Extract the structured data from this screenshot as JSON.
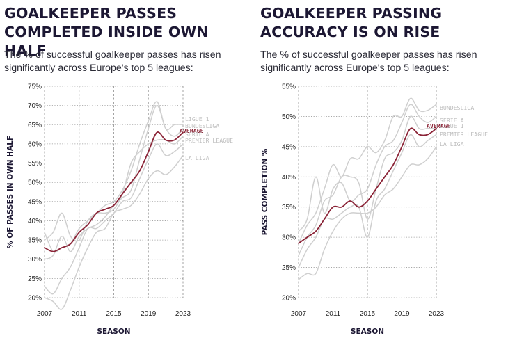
{
  "colors": {
    "average": "#8b2437",
    "league": "#cfcfcf",
    "grid": "#9a9a9a",
    "title": "#1c1733"
  },
  "chart_data": [
    {
      "type": "line",
      "title": "GOALKEEPER PASSES COMPLETED INSIDE OWN HALF",
      "subtitle": "The % of successful goalkeeper passes has risen significantly across Europe's top 5 leagues:",
      "xlabel": "SEASON",
      "ylabel": "% OF PASSES IN OWN HALF",
      "xlim": [
        2007,
        2023
      ],
      "ylim": [
        20,
        75
      ],
      "x_ticks": [
        2007,
        2011,
        2015,
        2019,
        2023
      ],
      "y_ticks": [
        20,
        25,
        30,
        35,
        40,
        45,
        50,
        55,
        60,
        65,
        70,
        75
      ],
      "y_tick_labels": [
        "20%",
        "25%",
        "30%",
        "35%",
        "40%",
        "45%",
        "50%",
        "55%",
        "60%",
        "65%",
        "70%",
        "75%"
      ],
      "x_tick_labels": [
        "2007",
        "2011",
        "2015",
        "2019",
        "2023"
      ],
      "x": [
        2007,
        2008,
        2009,
        2010,
        2011,
        2012,
        2013,
        2014,
        2015,
        2016,
        2017,
        2018,
        2019,
        2020,
        2021,
        2022,
        2023
      ],
      "series": [
        {
          "name": "AVERAGE",
          "highlight": true,
          "values": [
            33,
            32,
            33,
            34,
            37,
            39,
            42,
            43,
            44,
            47,
            50,
            53,
            58,
            63,
            61,
            61,
            63
          ]
        },
        {
          "name": "LIGUE 1",
          "values": [
            37,
            32,
            33,
            34,
            38,
            40,
            42,
            44,
            45,
            48,
            53,
            60,
            66,
            71,
            64,
            65,
            65
          ]
        },
        {
          "name": "BUNDESLIGA",
          "values": [
            30,
            31,
            36,
            32,
            36,
            38,
            39,
            41,
            44,
            46,
            48,
            56,
            64,
            70,
            64,
            62,
            64
          ]
        },
        {
          "name": "SERIE A",
          "values": [
            35,
            37,
            42,
            36,
            35,
            40,
            42,
            42,
            43,
            47,
            55,
            58,
            60,
            61,
            61,
            60,
            62
          ]
        },
        {
          "name": "PREMIER LEAGUE",
          "values": [
            23,
            21,
            25,
            28,
            33,
            38,
            38,
            40,
            42,
            45,
            46,
            51,
            56,
            60,
            57,
            58,
            60
          ]
        },
        {
          "name": "LA LIGA",
          "values": [
            20,
            19,
            17,
            22,
            28,
            33,
            37,
            38,
            42,
            43,
            44,
            47,
            51,
            53,
            52,
            54,
            57
          ]
        }
      ]
    },
    {
      "type": "line",
      "title": "GOALKEEPER PASSING ACCURACY IS ON RISE",
      "subtitle": "The % of successful goalkeeper passes has risen significantly across Europe's top 5 leagues:",
      "xlabel": "SEASON",
      "ylabel": "PASS COMPLETION %",
      "xlim": [
        2007,
        2023
      ],
      "ylim": [
        20,
        55
      ],
      "x_ticks": [
        2007,
        2011,
        2015,
        2019,
        2023
      ],
      "y_ticks": [
        20,
        25,
        30,
        35,
        40,
        45,
        50,
        55
      ],
      "y_tick_labels": [
        "20%",
        "25%",
        "30%",
        "35%",
        "40%",
        "45%",
        "50%",
        "55%"
      ],
      "x_tick_labels": [
        "2007",
        "2011",
        "2015",
        "2019",
        "2023"
      ],
      "x": [
        2007,
        2008,
        2009,
        2010,
        2011,
        2012,
        2013,
        2014,
        2015,
        2016,
        2017,
        2018,
        2019,
        2020,
        2021,
        2022,
        2023
      ],
      "series": [
        {
          "name": "AVERAGE",
          "highlight": true,
          "values": [
            29,
            30,
            31,
            33,
            35,
            35,
            36,
            35,
            36,
            38,
            40,
            42,
            45,
            48,
            47,
            47,
            48
          ]
        },
        {
          "name": "BUNDESLIGA",
          "values": [
            29,
            32,
            34,
            38,
            42,
            40,
            43,
            43,
            45,
            44,
            46,
            50,
            50,
            53,
            51,
            51,
            52
          ]
        },
        {
          "name": "SERIE A",
          "values": [
            31,
            33,
            40,
            34,
            38,
            39,
            36,
            37,
            38,
            42,
            45,
            46,
            49,
            52,
            50,
            49,
            50
          ]
        },
        {
          "name": "LIGUE 1",
          "values": [
            27,
            30,
            32,
            36,
            37,
            40,
            40,
            39,
            33,
            38,
            43,
            44,
            46,
            50,
            48,
            48,
            48
          ]
        },
        {
          "name": "PREMIER LEAGUE",
          "values": [
            25,
            28,
            30,
            33,
            33,
            34,
            35,
            35,
            30,
            36,
            38,
            41,
            44,
            47,
            45,
            46,
            47
          ]
        },
        {
          "name": "LA LIGA",
          "values": [
            23,
            24,
            24,
            28,
            31,
            33,
            34,
            34,
            34,
            35,
            37,
            38,
            40,
            42,
            42,
            43,
            45
          ]
        }
      ]
    }
  ]
}
